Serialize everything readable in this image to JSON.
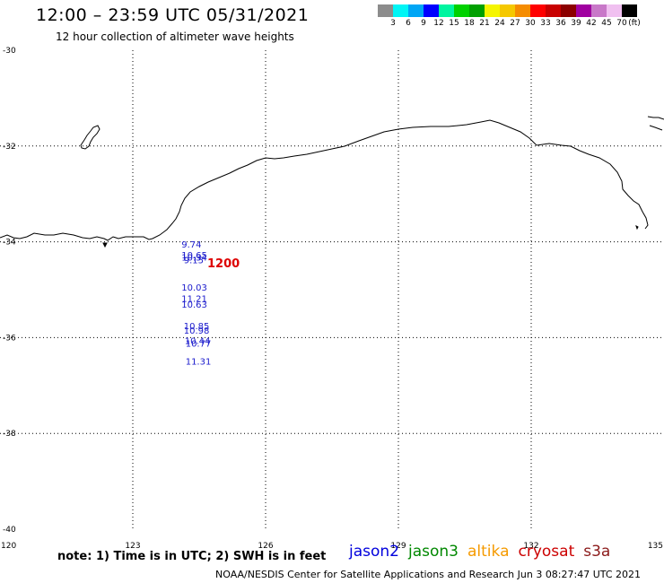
{
  "title": "12:00 – 23:59 UTC 05/31/2021",
  "subtitle": "12 hour collection of altimeter wave heights",
  "scale": {
    "unit": "(ft)",
    "colors": [
      "#8c8c8c",
      "#00f5f5",
      "#00a6f5",
      "#0000ff",
      "#00f5a0",
      "#00d200",
      "#00a000",
      "#f5f500",
      "#f5c800",
      "#f58c00",
      "#ff0000",
      "#c80000",
      "#8c0000",
      "#a000a0",
      "#c878c8",
      "#f0c0f0",
      "#000000"
    ],
    "labels": [
      "3",
      "6",
      "9",
      "12",
      "15",
      "18",
      "21",
      "24",
      "27",
      "30",
      "33",
      "36",
      "39",
      "42",
      "45",
      "70"
    ]
  },
  "axes": {
    "lon_range": [
      120,
      135
    ],
    "lat_range": [
      -40,
      -30
    ],
    "lon_ticks": [
      "120",
      "123",
      "126",
      "129",
      "132",
      "135"
    ],
    "lat_ticks": [
      "-30",
      "-32",
      "-34",
      "-36",
      "-38",
      "-40"
    ]
  },
  "time_marker": "1200",
  "observations": [
    {
      "lon": 124.1,
      "lat": -34.12,
      "label": "9.74"
    },
    {
      "lon": 124.1,
      "lat": -34.34,
      "label": "10.65"
    },
    {
      "lon": 124.1,
      "lat": -34.39,
      "label": "10.34"
    },
    {
      "lon": 124.15,
      "lat": -34.45,
      "label": "9.15"
    },
    {
      "lon": 124.1,
      "lat": -35.02,
      "label": "10.03"
    },
    {
      "lon": 124.1,
      "lat": -35.25,
      "label": "11.21"
    },
    {
      "lon": 124.1,
      "lat": -35.37,
      "label": "10.63"
    },
    {
      "lon": 124.15,
      "lat": -35.82,
      "label": "10.85"
    },
    {
      "lon": 124.15,
      "lat": -35.92,
      "label": "10.98"
    },
    {
      "lon": 124.17,
      "lat": -36.13,
      "label": "10.44"
    },
    {
      "lon": 124.19,
      "lat": -36.19,
      "label": "10.77"
    },
    {
      "lon": 124.19,
      "lat": -36.56,
      "label": "11.31"
    }
  ],
  "note": "note: 1) Time is in UTC; 2) SWH is in feet",
  "legend": [
    {
      "label": "jason2",
      "color": "#0000dd"
    },
    {
      "label": "jason3",
      "color": "#008800"
    },
    {
      "label": "altika",
      "color": "#f59a00"
    },
    {
      "label": "cryosat",
      "color": "#cc0000"
    },
    {
      "label": "s3a",
      "color": "#8b1a1a"
    }
  ],
  "credit": "NOAA/NESDIS Center for Satellite Applications and Research     Jun  3 08:27:47 UTC 2021",
  "colors": {
    "obs_label": "#1a1acc",
    "time_marker": "#dd0000"
  }
}
